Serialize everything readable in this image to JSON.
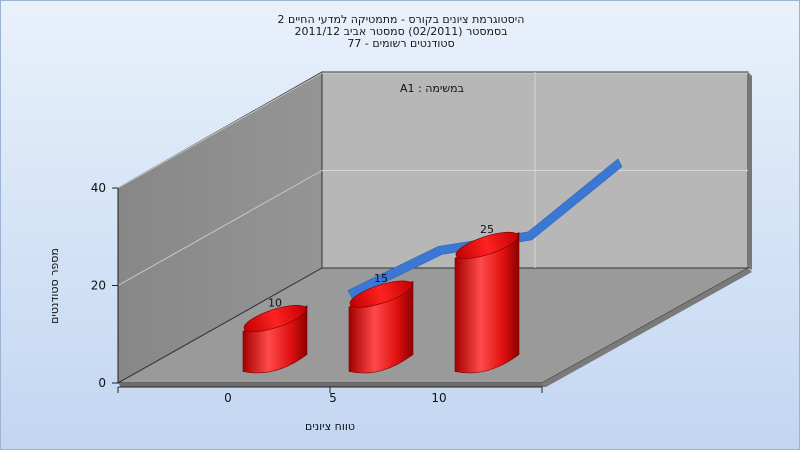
{
  "titles": [
    "היסטוגרמת ציונים בקורס - מתמטיקה למדעי החיים 2",
    "בסמסטר  (02/2011)  סמסטר אביב 2011/12",
    "סטודנטים רשומים - 77"
  ],
  "chart_data": {
    "type": "bar",
    "subtitle": "במשימה : A1",
    "xlabel": "טווח ציונים",
    "ylabel": "מספר סטודנטים",
    "categories": [
      "0",
      "5",
      "10"
    ],
    "values": [
      10,
      15,
      25
    ],
    "data_labels": [
      "10",
      "15",
      "25"
    ],
    "ylim": [
      0,
      40
    ],
    "yticks": [
      "0",
      "20",
      "40"
    ],
    "trend_series": {
      "color": "#3a78d4",
      "x": [
        0,
        5,
        10,
        15
      ],
      "y": [
        19,
        28,
        31,
        46
      ]
    },
    "bar_color": "#e8131b",
    "grid": true
  }
}
